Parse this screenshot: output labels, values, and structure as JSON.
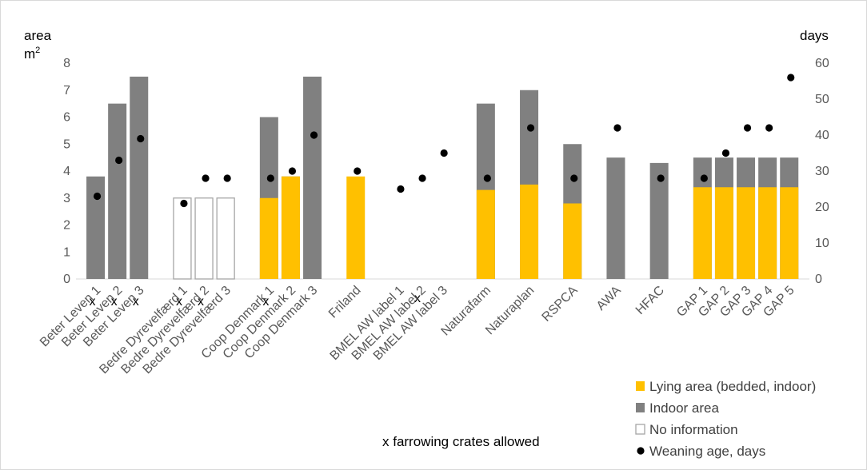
{
  "chart_data": {
    "type": "bar",
    "ylabel_left_line1": "area",
    "ylabel_left_line2": "m",
    "ylabel_left_sup": "2",
    "ylabel_right": "days",
    "ylim_left": [
      0,
      8
    ],
    "ylim_right": [
      0,
      60
    ],
    "yticks_left": [
      "0",
      "1",
      "2",
      "3",
      "4",
      "5",
      "6",
      "7",
      "8"
    ],
    "yticks_right": [
      "0",
      "10",
      "20",
      "30",
      "40",
      "50",
      "60"
    ],
    "grid": false,
    "legend_position": "bottom-right",
    "colors": {
      "lying": "#ffc000",
      "indoor": "#808080",
      "noinfo": "#ffffff",
      "noinfo_border": "#a6a6a6",
      "weaning": "#000000"
    },
    "legend": [
      {
        "key": "lying",
        "label": "Lying area (bedded, indoor)"
      },
      {
        "key": "indoor",
        "label": "Indoor area"
      },
      {
        "key": "noinfo",
        "label": "No information"
      },
      {
        "key": "weaning",
        "label": "Weaning age, days"
      }
    ],
    "crates_note": "x farrowing crates allowed",
    "crate_marker": "x",
    "categories": [
      {
        "label": "Beter Leven 1",
        "indoor": 3.8,
        "lying": null,
        "noinfo": false,
        "weaning": 23,
        "crates": true
      },
      {
        "label": "Beter Leven 2",
        "indoor": 6.5,
        "lying": null,
        "noinfo": false,
        "weaning": 33,
        "crates": true
      },
      {
        "label": "Beter Leven 3",
        "indoor": 7.5,
        "lying": null,
        "noinfo": false,
        "weaning": 39,
        "crates": true
      },
      {
        "gap": true
      },
      {
        "label": "Bedre Dyrevelfærd 1",
        "indoor": 3.0,
        "lying": null,
        "noinfo": true,
        "weaning": 21,
        "crates": true
      },
      {
        "label": "Bedre Dyrevelfærd 2",
        "indoor": 3.0,
        "lying": null,
        "noinfo": true,
        "weaning": 28,
        "crates": true
      },
      {
        "label": "Bedre Dyrevelfærd 3",
        "indoor": 3.0,
        "lying": null,
        "noinfo": true,
        "weaning": 28,
        "crates": false
      },
      {
        "gap": true
      },
      {
        "label": "Coop Denmark 1",
        "indoor": 6.0,
        "lying": 3.0,
        "noinfo": false,
        "weaning": 28,
        "crates": true
      },
      {
        "label": "Coop Denmark 2",
        "indoor": 3.8,
        "lying": 3.8,
        "noinfo": false,
        "weaning": 30,
        "crates": false
      },
      {
        "label": "Coop Denmark 3",
        "indoor": 7.5,
        "lying": null,
        "noinfo": false,
        "weaning": 40,
        "crates": false
      },
      {
        "gap": true
      },
      {
        "label": "Friland",
        "indoor": null,
        "lying": 3.8,
        "noinfo": false,
        "weaning": 30,
        "crates": false
      },
      {
        "gap": true
      },
      {
        "label": "BMEL AW label 1",
        "indoor": null,
        "lying": null,
        "noinfo": false,
        "weaning": 25,
        "crates": false
      },
      {
        "label": "BMEL AW label 2",
        "indoor": null,
        "lying": null,
        "noinfo": false,
        "weaning": 28,
        "crates": true
      },
      {
        "label": "BMEL AW label 3",
        "indoor": null,
        "lying": null,
        "noinfo": false,
        "weaning": 35,
        "crates": false
      },
      {
        "gap": true
      },
      {
        "label": "Naturafarm",
        "indoor": 6.5,
        "lying": 3.3,
        "noinfo": false,
        "weaning": 28,
        "crates": false
      },
      {
        "gap": true
      },
      {
        "label": "Naturaplan",
        "indoor": 7.0,
        "lying": 3.5,
        "noinfo": false,
        "weaning": 42,
        "crates": false
      },
      {
        "gap": true
      },
      {
        "label": "RSPCA",
        "indoor": 5.0,
        "lying": 2.8,
        "noinfo": false,
        "weaning": 28,
        "crates": false
      },
      {
        "gap": true
      },
      {
        "label": "AWA",
        "indoor": 4.5,
        "lying": null,
        "noinfo": false,
        "weaning": 42,
        "crates": false
      },
      {
        "gap": true
      },
      {
        "label": "HFAC",
        "indoor": 4.3,
        "lying": null,
        "noinfo": false,
        "weaning": 28,
        "crates": false
      },
      {
        "gap": true
      },
      {
        "label": "GAP 1",
        "indoor": 4.5,
        "lying": 3.4,
        "noinfo": false,
        "weaning": 28,
        "crates": false
      },
      {
        "label": "GAP 2",
        "indoor": 4.5,
        "lying": 3.4,
        "noinfo": false,
        "weaning": 35,
        "crates": false
      },
      {
        "label": "GAP 3",
        "indoor": 4.5,
        "lying": 3.4,
        "noinfo": false,
        "weaning": 42,
        "crates": false
      },
      {
        "label": "GAP 4",
        "indoor": 4.5,
        "lying": 3.4,
        "noinfo": false,
        "weaning": 42,
        "crates": false
      },
      {
        "label": "GAP 5",
        "indoor": 4.5,
        "lying": 3.4,
        "noinfo": false,
        "weaning": 56,
        "crates": false
      }
    ]
  }
}
